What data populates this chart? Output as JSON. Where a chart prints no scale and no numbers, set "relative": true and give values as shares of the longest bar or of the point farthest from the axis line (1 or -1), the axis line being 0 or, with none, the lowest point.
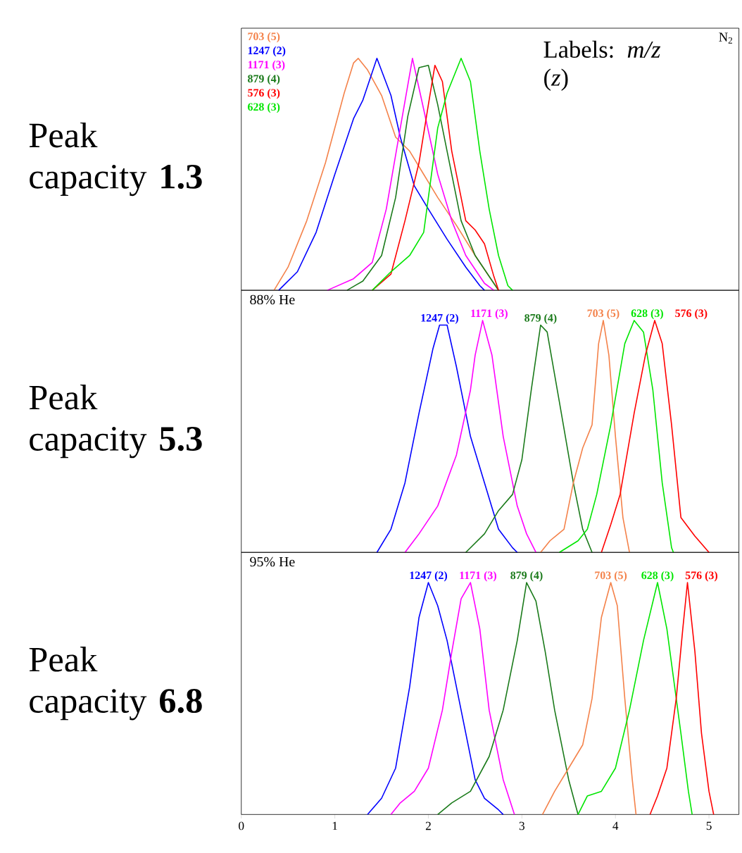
{
  "chart_data": [
    {
      "type": "line",
      "title": "Peak capacity **1.3**",
      "relative": true,
      "xlim": [
        0,
        5.32
      ],
      "tick_labels": false,
      "legend": "top left",
      "marker": "none",
      "line_style": "solid",
      "annotations": [
        "Labels: *m/z* (*z*)",
        "N$_{2}$"
      ],
      "series": [
        {
          "name": "703 (5)",
          "color": "#f4824a",
          "x": [
            0.35,
            0.5,
            0.7,
            0.9,
            1.0,
            1.1,
            1.2,
            1.25,
            1.35,
            1.5,
            1.65,
            1.8,
            1.95,
            2.1,
            2.3,
            2.5,
            2.65,
            2.75
          ],
          "values": [
            0,
            0.1,
            0.3,
            0.55,
            0.7,
            0.85,
            0.98,
            1.0,
            0.95,
            0.84,
            0.66,
            0.6,
            0.5,
            0.4,
            0.28,
            0.15,
            0.06,
            0
          ]
        },
        {
          "name": "1247 (2)",
          "color": "#0000ff",
          "x": [
            0.4,
            0.6,
            0.8,
            1.0,
            1.2,
            1.3,
            1.45,
            1.6,
            1.7,
            1.85,
            2.0,
            2.2,
            2.4,
            2.55,
            2.6
          ],
          "values": [
            0,
            0.08,
            0.25,
            0.5,
            0.74,
            0.82,
            1.0,
            0.84,
            0.66,
            0.45,
            0.35,
            0.22,
            0.1,
            0.02,
            0
          ]
        },
        {
          "name": "1171 (3)",
          "color": "#ff00ff",
          "x": [
            0.92,
            1.2,
            1.4,
            1.55,
            1.7,
            1.83,
            1.95,
            2.1,
            2.25,
            2.4,
            2.6,
            2.7
          ],
          "values": [
            0,
            0.05,
            0.12,
            0.35,
            0.7,
            1.0,
            0.78,
            0.5,
            0.3,
            0.15,
            0.03,
            0
          ]
        },
        {
          "name": "879 (4)",
          "color": "#1a7a1a",
          "x": [
            1.13,
            1.3,
            1.5,
            1.65,
            1.78,
            1.9,
            2.0,
            2.1,
            2.2,
            2.35,
            2.5,
            2.7,
            2.75
          ],
          "values": [
            0,
            0.04,
            0.15,
            0.4,
            0.75,
            0.96,
            0.97,
            0.8,
            0.6,
            0.3,
            0.15,
            0.03,
            0
          ]
        },
        {
          "name": "576 (3)",
          "color": "#ff0000",
          "x": [
            1.4,
            1.6,
            1.75,
            1.9,
            2.0,
            2.07,
            2.15,
            2.25,
            2.4,
            2.5,
            2.6,
            2.7,
            2.75
          ],
          "values": [
            0,
            0.07,
            0.3,
            0.55,
            0.8,
            0.97,
            0.9,
            0.6,
            0.3,
            0.26,
            0.2,
            0.06,
            0
          ]
        },
        {
          "name": "628 (3)",
          "color": "#00e600",
          "x": [
            1.4,
            1.6,
            1.8,
            1.95,
            2.0,
            2.1,
            2.2,
            2.35,
            2.45,
            2.55,
            2.65,
            2.75,
            2.85,
            2.9
          ],
          "values": [
            0,
            0.08,
            0.15,
            0.25,
            0.4,
            0.7,
            0.85,
            1.0,
            0.9,
            0.6,
            0.35,
            0.15,
            0.02,
            0
          ]
        }
      ]
    },
    {
      "type": "line",
      "title": "Peak capacity **5.3**",
      "relative": true,
      "xlim": [
        0,
        5.32
      ],
      "tick_labels": false,
      "marker": "none",
      "line_style": "solid",
      "annotations": [
        "88% He"
      ],
      "series": [
        {
          "name": "1247 (2)",
          "color": "#0000ff",
          "x": [
            1.45,
            1.6,
            1.75,
            1.9,
            2.05,
            2.12,
            2.2,
            2.3,
            2.45,
            2.6,
            2.75,
            2.9,
            2.95
          ],
          "values": [
            0,
            0.1,
            0.3,
            0.6,
            0.88,
            0.98,
            0.98,
            0.8,
            0.5,
            0.3,
            0.1,
            0.02,
            0
          ]
        },
        {
          "name": "1171 (3)",
          "color": "#ff00ff",
          "x": [
            1.75,
            1.9,
            2.1,
            2.3,
            2.45,
            2.5,
            2.58,
            2.68,
            2.8,
            2.95,
            3.05,
            3.15
          ],
          "values": [
            0,
            0.08,
            0.2,
            0.42,
            0.7,
            0.85,
            1.0,
            0.85,
            0.5,
            0.2,
            0.08,
            0
          ]
        },
        {
          "name": "879 (4)",
          "color": "#1a7a1a",
          "x": [
            2.4,
            2.6,
            2.75,
            2.9,
            3.0,
            3.1,
            3.2,
            3.27,
            3.4,
            3.55,
            3.65,
            3.75
          ],
          "values": [
            0,
            0.08,
            0.18,
            0.25,
            0.4,
            0.7,
            0.98,
            0.95,
            0.65,
            0.3,
            0.1,
            0
          ]
        },
        {
          "name": "703 (5)",
          "color": "#f4824a",
          "x": [
            3.2,
            3.3,
            3.45,
            3.55,
            3.65,
            3.75,
            3.82,
            3.87,
            3.93,
            4.0,
            4.08,
            4.15
          ],
          "values": [
            0,
            0.05,
            0.1,
            0.3,
            0.45,
            0.55,
            0.9,
            1.0,
            0.85,
            0.5,
            0.15,
            0
          ]
        },
        {
          "name": "628 (3)",
          "color": "#00e600",
          "x": [
            3.4,
            3.6,
            3.7,
            3.8,
            3.95,
            4.1,
            4.2,
            4.3,
            4.4,
            4.5,
            4.6,
            4.62
          ],
          "values": [
            0,
            0.05,
            0.1,
            0.25,
            0.55,
            0.9,
            1.0,
            0.95,
            0.7,
            0.3,
            0.02,
            0
          ]
        },
        {
          "name": "576 (3)",
          "color": "#ff0000",
          "x": [
            3.85,
            3.95,
            4.05,
            4.2,
            4.32,
            4.42,
            4.5,
            4.6,
            4.7,
            4.85,
            5.0
          ],
          "values": [
            0,
            0.12,
            0.25,
            0.6,
            0.85,
            1.0,
            0.9,
            0.55,
            0.15,
            0.07,
            0
          ]
        }
      ]
    },
    {
      "type": "line",
      "title": "Peak capacity **6.8**",
      "relative": true,
      "xlim": [
        0,
        5.32
      ],
      "xticks": [
        0,
        1,
        2,
        3,
        4,
        5
      ],
      "tick_labels": "x",
      "marker": "none",
      "line_style": "solid",
      "annotations": [
        "95% He"
      ],
      "series": [
        {
          "name": "1247 (2)",
          "color": "#0000ff",
          "x": [
            1.35,
            1.5,
            1.65,
            1.8,
            1.9,
            2.0,
            2.1,
            2.2,
            2.35,
            2.5,
            2.6,
            2.75,
            2.8
          ],
          "values": [
            0,
            0.07,
            0.2,
            0.55,
            0.85,
            1.0,
            0.9,
            0.75,
            0.45,
            0.15,
            0.07,
            0.02,
            0
          ]
        },
        {
          "name": "1171 (3)",
          "color": "#ff00ff",
          "x": [
            1.6,
            1.7,
            1.85,
            2.0,
            2.15,
            2.25,
            2.35,
            2.45,
            2.55,
            2.65,
            2.8,
            2.92
          ],
          "values": [
            0,
            0.05,
            0.1,
            0.2,
            0.45,
            0.7,
            0.93,
            1.0,
            0.8,
            0.45,
            0.15,
            0
          ]
        },
        {
          "name": "879 (4)",
          "color": "#1a7a1a",
          "x": [
            2.1,
            2.25,
            2.45,
            2.65,
            2.8,
            2.95,
            3.05,
            3.15,
            3.25,
            3.35,
            3.5,
            3.6
          ],
          "values": [
            0,
            0.05,
            0.1,
            0.25,
            0.45,
            0.75,
            1.0,
            0.92,
            0.7,
            0.45,
            0.15,
            0
          ]
        },
        {
          "name": "703 (5)",
          "color": "#f4824a",
          "x": [
            3.22,
            3.35,
            3.5,
            3.65,
            3.75,
            3.85,
            3.95,
            4.02,
            4.1,
            4.18,
            4.22
          ],
          "values": [
            0,
            0.1,
            0.2,
            0.3,
            0.5,
            0.85,
            1.0,
            0.9,
            0.5,
            0.15,
            0
          ]
        },
        {
          "name": "628 (3)",
          "color": "#00e600",
          "x": [
            3.6,
            3.7,
            3.85,
            4.0,
            4.15,
            4.3,
            4.45,
            4.55,
            4.7,
            4.78,
            4.82
          ],
          "values": [
            0,
            0.08,
            0.1,
            0.2,
            0.45,
            0.75,
            1.0,
            0.8,
            0.35,
            0.1,
            0
          ]
        },
        {
          "name": "576 (3)",
          "color": "#ff0000",
          "x": [
            4.37,
            4.45,
            4.55,
            4.65,
            4.72,
            4.77,
            4.85,
            4.92,
            5.0,
            5.05
          ],
          "values": [
            0,
            0.08,
            0.2,
            0.5,
            0.8,
            1.0,
            0.7,
            0.35,
            0.1,
            0
          ]
        }
      ]
    }
  ]
}
